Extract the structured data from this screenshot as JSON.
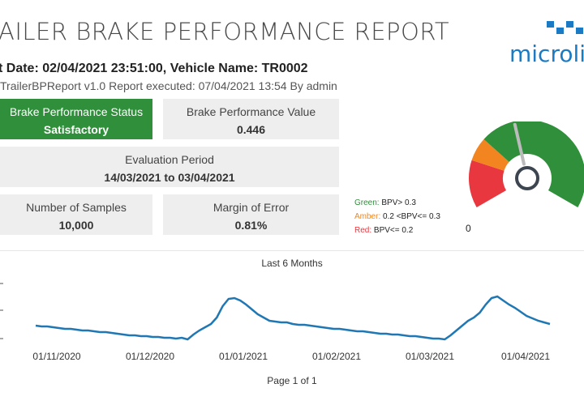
{
  "report": {
    "title": "AILER BRAKE PERFORMANCE REPORT",
    "subtitle": "t Date: 02/04/2021 23:51:00, Vehicle Name: TR0002",
    "executed": "TrailerBPReport v1.0 Report executed: 07/04/2021 13:54 By admin",
    "logo_text": "microli"
  },
  "cards": {
    "status": {
      "label": "Brake Performance Status",
      "value": "Satisfactory"
    },
    "bpv": {
      "label": "Brake Performance Value",
      "value": "0.446"
    },
    "period": {
      "label": "Evaluation Period",
      "value": "14/03/2021 to 03/04/2021"
    },
    "samples": {
      "label": "Number of Samples",
      "value": "10,000"
    },
    "margin": {
      "label": "Margin of Error",
      "value": "0.81%"
    }
  },
  "legend": {
    "green_label": "Green:",
    "green_text": "BPV> 0.3",
    "amber_label": "Amber:",
    "amber_text": "0.2 <BPV<= 0.3",
    "red_label": "Red:",
    "red_text": "BPV<= 0.2"
  },
  "gauge": {
    "min_label": "0",
    "value": 0.446,
    "colors": {
      "red": "#e8373f",
      "amber": "#f2851f",
      "green": "#2f8f3a"
    }
  },
  "colors": {
    "status_green": "#2f8f3a",
    "line": "#1f77b4",
    "logo_blue": "#1a7bc4"
  },
  "chart_data": {
    "type": "line",
    "title": "Last 6 Months",
    "x_ticks": [
      "01/11/2020",
      "01/12/2020",
      "01/01/2021",
      "01/02/2021",
      "01/03/2021",
      "01/04/2021"
    ],
    "series": [
      {
        "values": [
          0.56,
          0.55,
          0.55,
          0.54,
          0.53,
          0.52,
          0.52,
          0.51,
          0.5,
          0.5,
          0.49,
          0.48,
          0.48,
          0.47,
          0.46,
          0.45,
          0.44,
          0.44,
          0.43,
          0.43,
          0.42,
          0.42,
          0.41,
          0.41,
          0.4,
          0.41,
          0.39,
          0.45,
          0.5,
          0.54,
          0.58,
          0.66,
          0.8,
          0.89,
          0.9,
          0.87,
          0.82,
          0.76,
          0.7,
          0.66,
          0.62,
          0.61,
          0.6,
          0.6,
          0.58,
          0.57,
          0.57,
          0.56,
          0.55,
          0.54,
          0.53,
          0.52,
          0.52,
          0.51,
          0.5,
          0.49,
          0.49,
          0.48,
          0.47,
          0.46,
          0.46,
          0.45,
          0.45,
          0.44,
          0.43,
          0.43,
          0.42,
          0.41,
          0.4,
          0.4,
          0.39,
          0.44,
          0.5,
          0.56,
          0.62,
          0.66,
          0.72,
          0.82,
          0.9,
          0.92,
          0.87,
          0.82,
          0.78,
          0.73,
          0.68,
          0.65,
          0.62,
          0.6,
          0.58
        ]
      }
    ]
  },
  "footer": {
    "page": "Page 1 of 1"
  }
}
